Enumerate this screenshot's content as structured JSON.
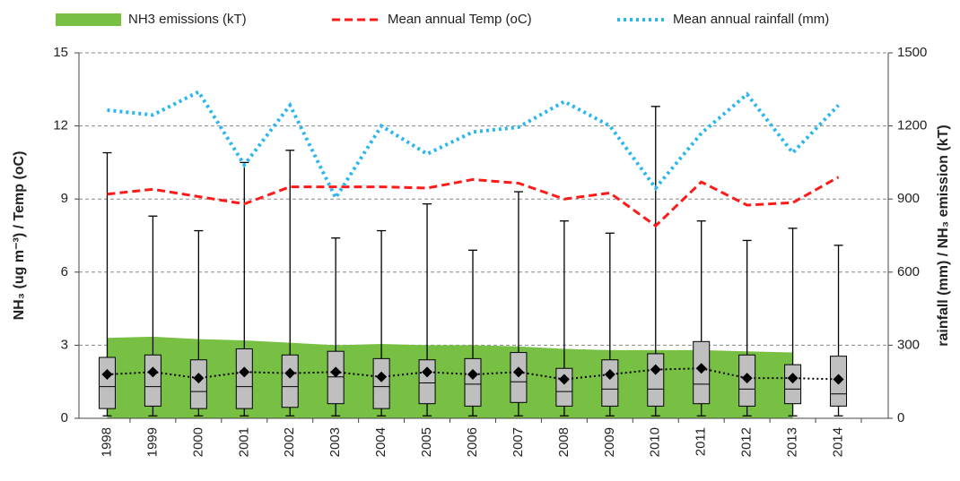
{
  "chart_data": {
    "type": "box",
    "y_label": "NH₃ (ug m⁻³) / Temp (oC)",
    "y2_label": "rainfall (mm) / NH₃ emission (kT)",
    "categories": [
      "1998",
      "1999",
      "2000",
      "2001",
      "2002",
      "2003",
      "2004",
      "2005",
      "2006",
      "2007",
      "2008",
      "2009",
      "2010",
      "2011",
      "2012",
      "2013",
      "2014"
    ],
    "boxes": {
      "color": "#bfbfbf",
      "min": [
        0.1,
        0.1,
        0.1,
        0.1,
        0.1,
        0.1,
        0.1,
        0.1,
        0.1,
        0.1,
        0.1,
        0.1,
        0.1,
        0.1,
        0.1,
        0.1,
        0.1
      ],
      "q1": [
        0.4,
        0.5,
        0.4,
        0.4,
        0.45,
        0.6,
        0.4,
        0.6,
        0.5,
        0.65,
        0.5,
        0.5,
        0.5,
        0.6,
        0.5,
        0.6,
        0.5
      ],
      "median": [
        1.3,
        1.3,
        1.1,
        1.3,
        1.3,
        1.7,
        1.3,
        1.45,
        1.4,
        1.5,
        1.1,
        1.2,
        1.2,
        1.4,
        1.2,
        1.2,
        1.0
      ],
      "q3": [
        2.5,
        2.6,
        2.4,
        2.85,
        2.6,
        2.75,
        2.45,
        2.4,
        2.45,
        2.7,
        2.05,
        2.4,
        2.65,
        3.15,
        2.6,
        2.2,
        2.55
      ],
      "max": [
        10.9,
        8.3,
        7.7,
        10.5,
        11.0,
        7.4,
        7.7,
        8.8,
        6.9,
        9.3,
        8.1,
        7.6,
        12.8,
        8.1,
        7.3,
        7.8,
        7.1
      ],
      "mean": [
        1.8,
        1.9,
        1.65,
        1.9,
        1.85,
        1.9,
        1.7,
        1.9,
        1.8,
        1.9,
        1.6,
        1.8,
        2.0,
        2.05,
        1.65,
        1.65,
        1.6
      ]
    },
    "series": [
      {
        "name": "NH3 emissions (kT)",
        "type": "area",
        "color": "#77c043",
        "axis": "y2",
        "values": [
          330,
          335,
          325,
          320,
          310,
          300,
          305,
          300,
          300,
          295,
          285,
          280,
          280,
          280,
          275,
          270,
          null
        ]
      },
      {
        "name": "Mean annual Temp (oC)",
        "type": "line",
        "style": "dashed",
        "color": "#ff1a1a",
        "values": [
          9.2,
          9.4,
          9.1,
          8.8,
          9.5,
          9.5,
          9.5,
          9.45,
          9.8,
          9.65,
          9.0,
          9.25,
          7.9,
          9.7,
          8.75,
          8.85,
          9.9
        ]
      },
      {
        "name": "Mean annual rainfall (mm)",
        "type": "line",
        "style": "dotted",
        "color": "#2ab7ef",
        "axis": "y2",
        "values": [
          1265,
          1245,
          1340,
          1040,
          1285,
          905,
          1200,
          1085,
          1175,
          1195,
          1300,
          1200,
          945,
          1170,
          1330,
          1090,
          1285
        ]
      }
    ],
    "ylim": [
      0,
      15
    ],
    "yticks": [
      0,
      3,
      6,
      9,
      12,
      15
    ],
    "y2lim": [
      0,
      1500
    ],
    "y2ticks": [
      0,
      300,
      600,
      900,
      1200,
      1500
    ],
    "grid": true,
    "legend": "top"
  }
}
